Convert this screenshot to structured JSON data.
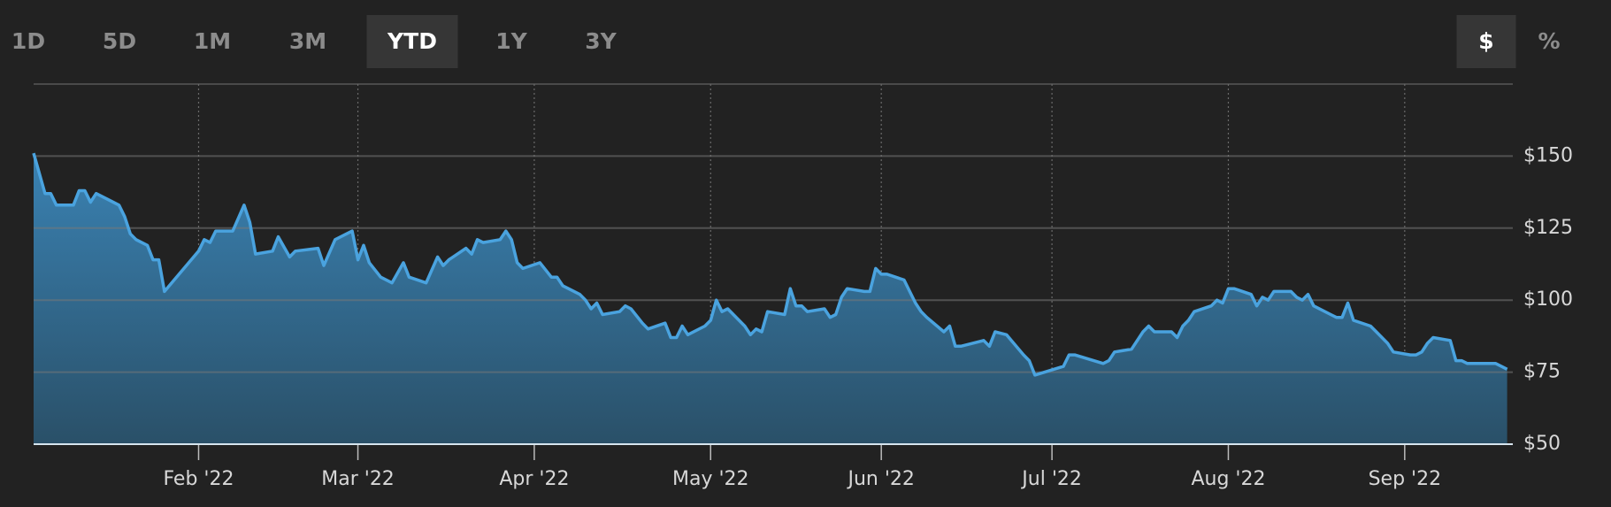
{
  "controls": {
    "ranges": [
      "1D",
      "5D",
      "1M",
      "3M",
      "YTD",
      "1Y",
      "3Y"
    ],
    "units": [
      "$",
      "%"
    ]
  },
  "chart_data": {
    "type": "area",
    "x": [
      0,
      2,
      3,
      4,
      7,
      8,
      9,
      10,
      11,
      15,
      16,
      17,
      18,
      20,
      21,
      22,
      23,
      29,
      30,
      31,
      32,
      35,
      37,
      38,
      39,
      42,
      43,
      45,
      46,
      50,
      51,
      53,
      56,
      57,
      58,
      59,
      61,
      63,
      65,
      66,
      69,
      71,
      72,
      73,
      76,
      77,
      78,
      79,
      82,
      83,
      84,
      85,
      86,
      89,
      91,
      92,
      93,
      96,
      97,
      98,
      99,
      100,
      103,
      104,
      105,
      107,
      108,
      111,
      112,
      113,
      114,
      115,
      118,
      119,
      120,
      121,
      122,
      125,
      126,
      127,
      128,
      129,
      132,
      133,
      134,
      135,
      136,
      139,
      140,
      141,
      142,
      143,
      146,
      147,
      148,
      149,
      150,
      153,
      154,
      155,
      156,
      157,
      160,
      161,
      162,
      163,
      167,
      168,
      169,
      171,
      174,
      175,
      176,
      181,
      182,
      183,
      188,
      189,
      190,
      193,
      195,
      196,
      197,
      200,
      201,
      202,
      203,
      204,
      207,
      208,
      209,
      210,
      211,
      214,
      215,
      216,
      217,
      218,
      221,
      222,
      223,
      224,
      225,
      228,
      229,
      230,
      231,
      232,
      235,
      236,
      237,
      238,
      239,
      242,
      243,
      244,
      245,
      246,
      249,
      250,
      251,
      252,
      256,
      257,
      259
    ],
    "values": [
      151,
      137,
      137,
      133,
      133,
      138,
      138,
      134,
      137,
      133,
      129,
      123,
      121,
      119,
      114,
      114,
      103,
      117,
      121,
      120,
      124,
      124,
      133,
      127,
      116,
      117,
      122,
      115,
      117,
      118,
      112,
      121,
      124,
      114,
      119,
      113,
      108,
      106,
      113,
      108,
      106,
      115,
      112,
      114,
      118,
      116,
      121,
      120,
      121,
      124,
      121,
      113,
      111,
      113,
      108,
      108,
      105,
      102,
      100,
      97,
      99,
      95,
      96,
      98,
      97,
      92,
      90,
      92,
      87,
      87,
      91,
      88,
      91,
      93,
      100,
      96,
      97,
      91,
      88,
      90,
      89,
      96,
      95,
      104,
      98,
      98,
      96,
      97,
      94,
      95,
      101,
      104,
      103,
      103,
      111,
      109,
      109,
      107,
      103,
      99,
      96,
      94,
      89,
      91,
      84,
      84,
      86,
      84,
      89,
      88,
      81,
      79,
      74,
      77,
      81,
      81,
      78,
      79,
      82,
      83,
      89,
      91,
      89,
      89,
      87,
      91,
      93,
      96,
      98,
      100,
      99,
      104,
      104,
      102,
      98,
      101,
      100,
      103,
      103,
      101,
      100,
      102,
      98,
      95,
      94,
      94,
      99,
      93,
      91,
      89,
      87,
      85,
      82,
      81,
      81,
      82,
      85,
      87,
      86,
      79,
      79,
      78,
      78,
      78,
      76
    ],
    "color": "#4aa3df",
    "xlim": [
      0,
      260
    ],
    "xticks": [
      {
        "value": 29,
        "label": "Feb '22"
      },
      {
        "value": 57,
        "label": "Mar '22"
      },
      {
        "value": 88,
        "label": "Apr '22"
      },
      {
        "value": 119,
        "label": "May '22"
      },
      {
        "value": 149,
        "label": "Jun '22"
      },
      {
        "value": 179,
        "label": "Jul '22"
      },
      {
        "value": 210,
        "label": "Aug '22"
      },
      {
        "value": 241,
        "label": "Sep '22"
      }
    ],
    "ylim": [
      50,
      175
    ],
    "yticks": [
      {
        "value": 50,
        "label": "$50"
      },
      {
        "value": 75,
        "label": "$75"
      },
      {
        "value": 100,
        "label": "$100"
      },
      {
        "value": 125,
        "label": "$125"
      },
      {
        "value": 150,
        "label": "$150"
      }
    ],
    "grid": true
  }
}
